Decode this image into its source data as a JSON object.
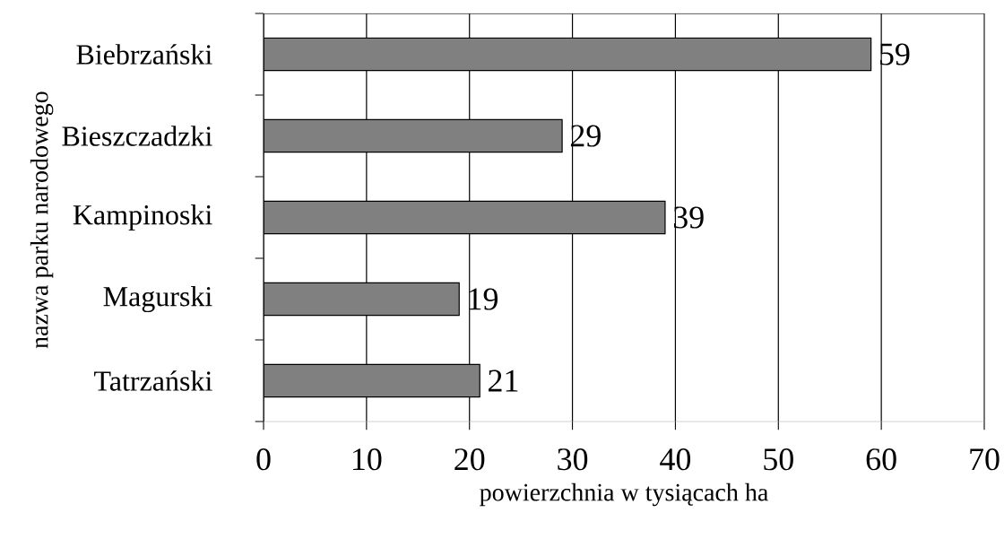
{
  "chart_data": {
    "type": "bar",
    "orientation": "horizontal",
    "xlabel": "powierzchnia w tysiącach ha",
    "ylabel": "nazwa parku narodowego",
    "categories": [
      "Biebrzański",
      "Bieszczadzki",
      "Kampinoski",
      "Magurski",
      "Tatrzański"
    ],
    "values": [
      59,
      29,
      39,
      19,
      21
    ],
    "color": "#808080",
    "xlim": [
      0,
      70
    ],
    "xticks": [
      0,
      10,
      20,
      30,
      40,
      50,
      60,
      70
    ],
    "grid": "x",
    "data_labels": true
  }
}
